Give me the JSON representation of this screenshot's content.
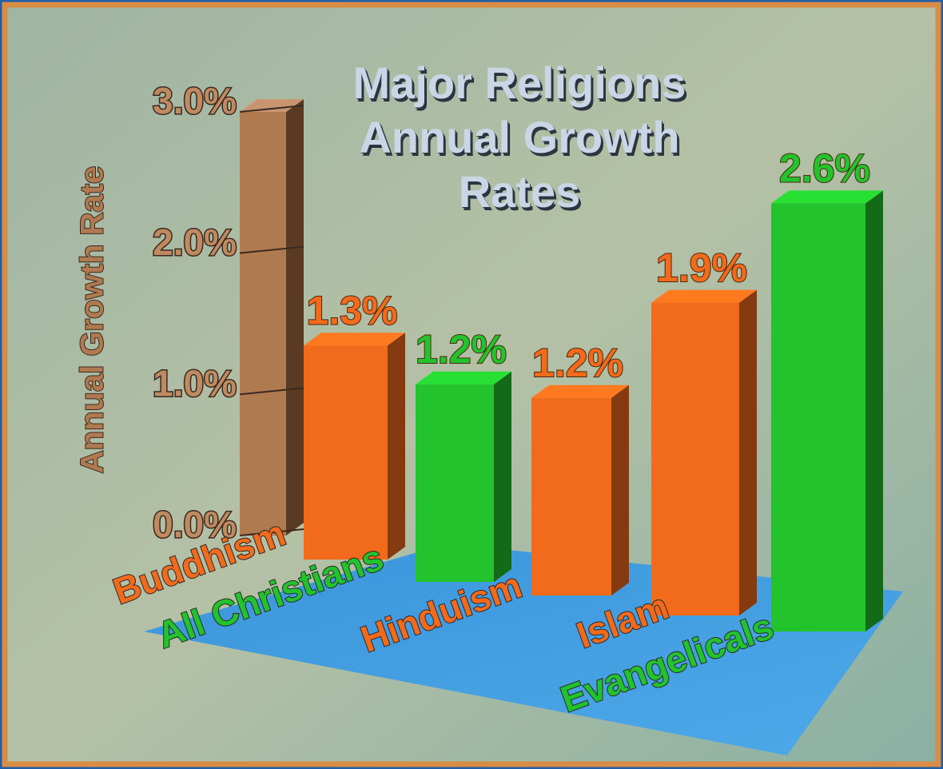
{
  "chart_data": {
    "type": "bar3d",
    "title": "Major Religions Annual Growth Rates",
    "y_label": "Annual Growth Rate",
    "categories": [
      "Buddhism",
      "All Christians",
      "Hinduism",
      "Islam",
      "Evangelicals"
    ],
    "values": [
      1.3,
      1.2,
      1.2,
      1.9,
      2.6
    ],
    "value_labels": [
      "1.3%",
      "1.2%",
      "1.2%",
      "1.9%",
      "2.6%"
    ],
    "colors": [
      "#f26a1b",
      "#22c32c",
      "#f26a1b",
      "#f26a1b",
      "#22c32c"
    ],
    "ylim": [
      0,
      3
    ],
    "yticks": [
      {
        "value": 0,
        "label": "0.0%"
      },
      {
        "value": 1,
        "label": "1.0%"
      },
      {
        "value": 2,
        "label": "2.0%"
      },
      {
        "value": 3,
        "label": "3.0%"
      }
    ]
  }
}
